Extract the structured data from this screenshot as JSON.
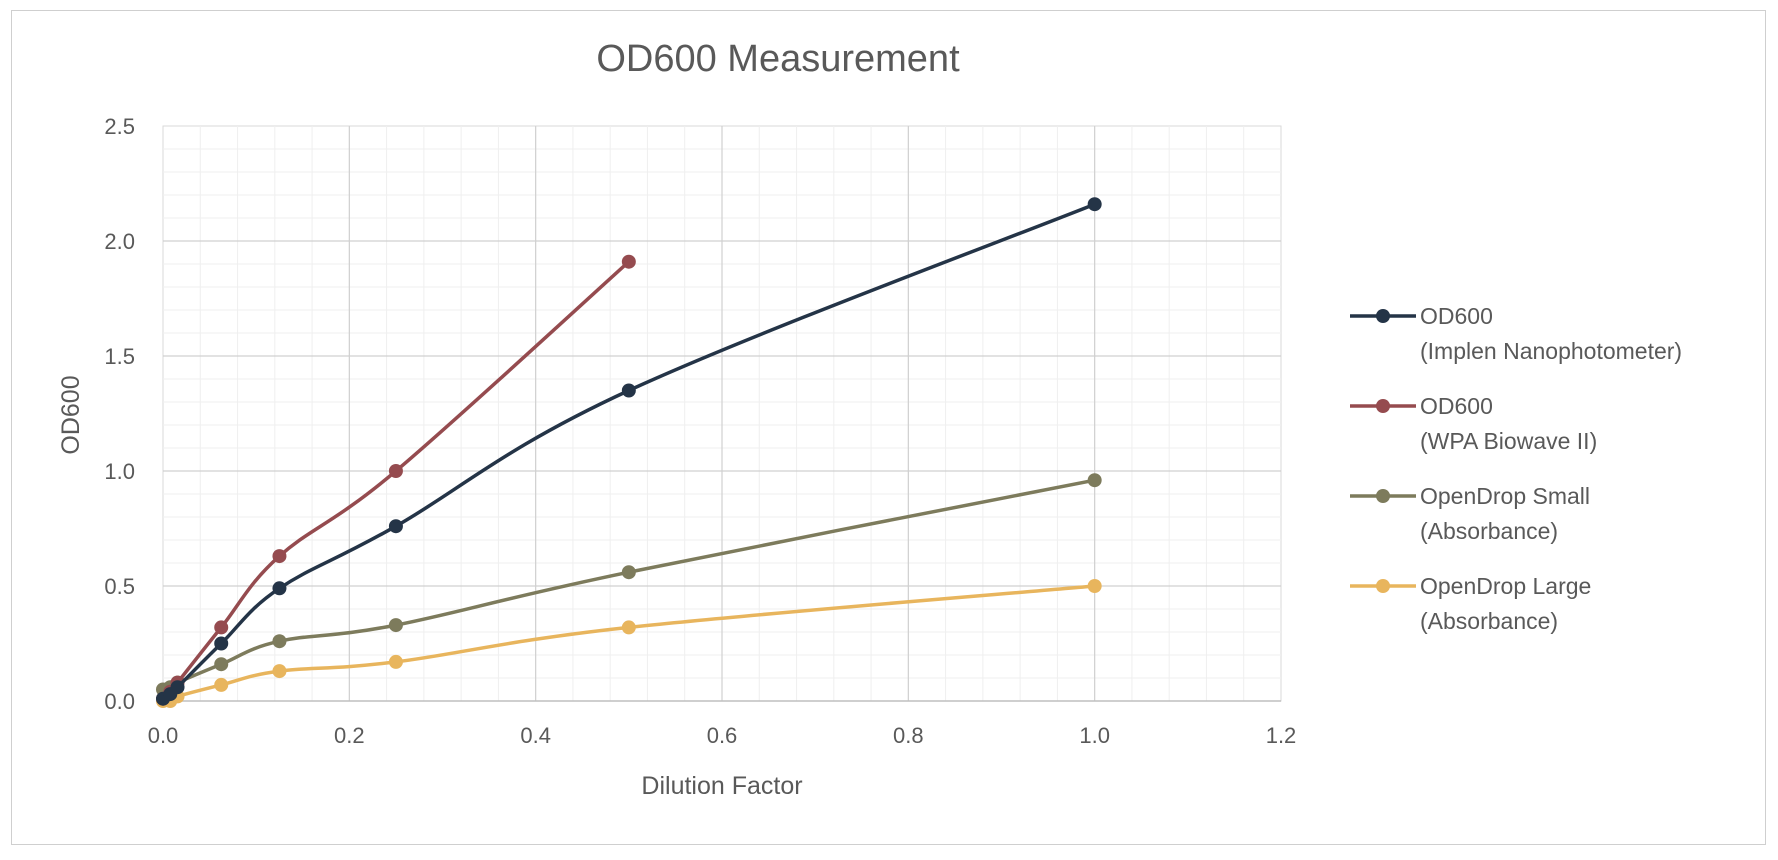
{
  "chart_data": {
    "type": "line",
    "title": "OD600 Measurement",
    "xlabel": "Dilution Factor",
    "ylabel": "OD600",
    "xlim": [
      0,
      1.2
    ],
    "ylim": [
      0,
      2.5
    ],
    "x_ticks": [
      "0.0",
      "0.2",
      "0.4",
      "0.6",
      "0.8",
      "1.0",
      "1.2"
    ],
    "y_ticks": [
      "0.0",
      "0.5",
      "1.0",
      "1.5",
      "2.0",
      "2.5"
    ],
    "grid": true,
    "minor_grid": true,
    "legend_position": "right",
    "smoothed_lines": true,
    "series": [
      {
        "name_line1": "OD600",
        "name_line2": "(Implen Nanophotometer)",
        "color": "#243447",
        "points": [
          [
            0.0,
            0.01
          ],
          [
            0.0078,
            0.03
          ],
          [
            0.0156,
            0.06
          ],
          [
            0.0625,
            0.25
          ],
          [
            0.125,
            0.49
          ],
          [
            0.25,
            0.76
          ],
          [
            0.5,
            1.35
          ],
          [
            1.0,
            2.16
          ]
        ]
      },
      {
        "name_line1": "OD600",
        "name_line2": "(WPA Biowave II)",
        "color": "#954b4f",
        "points": [
          [
            0.0,
            0.01
          ],
          [
            0.0078,
            0.04
          ],
          [
            0.0156,
            0.08
          ],
          [
            0.0625,
            0.32
          ],
          [
            0.125,
            0.63
          ],
          [
            0.25,
            1.0
          ],
          [
            0.5,
            1.91
          ]
        ]
      },
      {
        "name_line1": "OpenDrop Small",
        "name_line2": "(Absorbance)",
        "color": "#7d7b5c",
        "points": [
          [
            0.0,
            0.05
          ],
          [
            0.0078,
            0.06
          ],
          [
            0.0156,
            0.08
          ],
          [
            0.0625,
            0.16
          ],
          [
            0.125,
            0.26
          ],
          [
            0.25,
            0.33
          ],
          [
            0.5,
            0.56
          ],
          [
            1.0,
            0.96
          ]
        ]
      },
      {
        "name_line1": "OpenDrop Large",
        "name_line2": "(Absorbance)",
        "color": "#e8b55d",
        "points": [
          [
            0.0,
            0.0
          ],
          [
            0.0078,
            0.0
          ],
          [
            0.0156,
            0.02
          ],
          [
            0.0625,
            0.07
          ],
          [
            0.125,
            0.13
          ],
          [
            0.25,
            0.17
          ],
          [
            0.5,
            0.32
          ],
          [
            1.0,
            0.5
          ]
        ]
      }
    ]
  }
}
